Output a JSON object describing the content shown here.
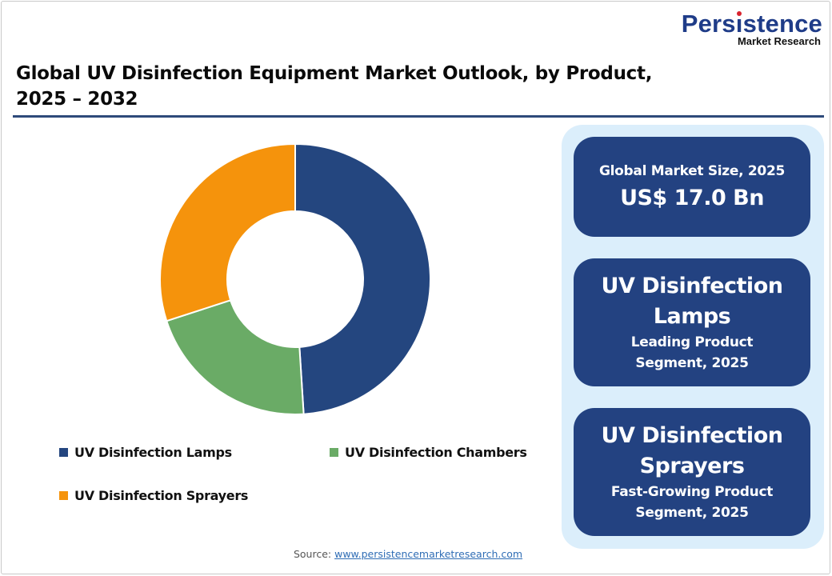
{
  "logo": {
    "main": "Persistence",
    "sub": "Market Research"
  },
  "title": {
    "line1": "Global UV Disinfection Equipment Market Outlook, by Product,",
    "line2": "2025 – 2032"
  },
  "colors": {
    "lamps": "#24467f",
    "chambers": "#6aab66",
    "sprayers": "#f5930c",
    "panel_bg": "#dbeefb",
    "card_bg": "#234281",
    "title_rule": "#2e4a7a"
  },
  "chart_data": {
    "type": "pie",
    "variant": "donut",
    "title": "Global UV Disinfection Equipment Market Outlook, by Product, 2025 – 2032",
    "categories": [
      "UV Disinfection Lamps",
      "UV Disinfection Chambers",
      "UV Disinfection Sprayers"
    ],
    "values": [
      49,
      21,
      30
    ],
    "unit": "% share (estimated from slice angles)",
    "start_angle": "12 o'clock, clockwise",
    "legend_position": "bottom",
    "colors": [
      "#24467f",
      "#6aab66",
      "#f5930c"
    ]
  },
  "legend": {
    "items": [
      {
        "label": "UV Disinfection Lamps",
        "color": "#24467f"
      },
      {
        "label": "UV Disinfection Chambers",
        "color": "#6aab66"
      },
      {
        "label": "UV Disinfection Sprayers",
        "color": "#f5930c"
      }
    ]
  },
  "panel": {
    "cards": [
      {
        "line1": "Global Market Size, 2025",
        "line2": "US$ 17.0 Bn"
      },
      {
        "line1": "UV Disinfection",
        "line2": "Lamps",
        "line3": "Leading Product",
        "line4": "Segment, 2025"
      },
      {
        "line1": "UV Disinfection",
        "line2": "Sprayers",
        "line3": "Fast-Growing Product",
        "line4": "Segment, 2025"
      }
    ]
  },
  "source": {
    "label": "Source:",
    "link_text": "www.persistencemarketresearch.com"
  }
}
